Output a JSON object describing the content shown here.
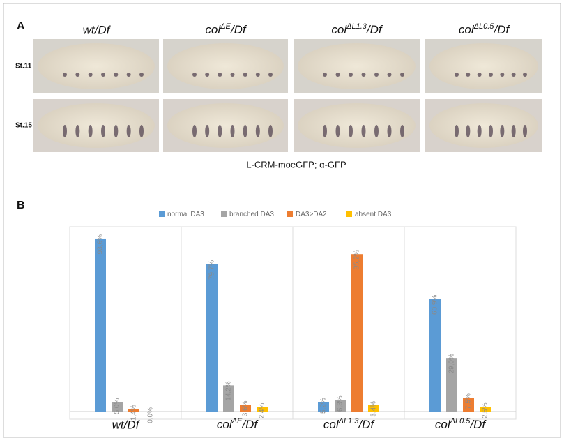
{
  "panel_a": {
    "label": "A",
    "columns": [
      "wt/Df",
      "colΔE/Df",
      "colΔL1.3/Df",
      "colΔL0.5/Df"
    ],
    "rows": [
      "St.11",
      "St.15"
    ],
    "caption": "L-CRM-moeGFP; α-GFP"
  },
  "chart_data": {
    "type": "bar",
    "label": "B",
    "categories": [
      "wt/Df",
      "colΔE/Df",
      "colΔL1.3/Df",
      "colΔL0.5/Df"
    ],
    "ylim": [
      0,
      100
    ],
    "series": [
      {
        "name": "normal  DA3",
        "color": "#5b9bd5",
        "values": [
          93.6,
          79.7,
          5.2,
          60.9
        ],
        "value_labels": [
          "93,6%",
          "79,7%",
          "5,2%",
          "60,9%"
        ]
      },
      {
        "name": "branched DA3",
        "color": "#a5a5a5",
        "values": [
          5.0,
          14.2,
          6.3,
          29.0
        ],
        "value_labels": [
          "5,0%",
          "14,2%",
          "6,3%",
          "29,0%"
        ]
      },
      {
        "name": "DA3>DA2",
        "color": "#ed7d31",
        "values": [
          1.4,
          3.6,
          85.2,
          7.5
        ],
        "value_labels": [
          "1,4%",
          "3,6%",
          "85,2%",
          "7,5%"
        ]
      },
      {
        "name": "absent DA3",
        "color": "#ffc000",
        "values": [
          0.0,
          2.4,
          3.4,
          2.5
        ],
        "value_labels": [
          "0,0%",
          "2,4%",
          "3,4%",
          "2,5%"
        ]
      }
    ]
  }
}
